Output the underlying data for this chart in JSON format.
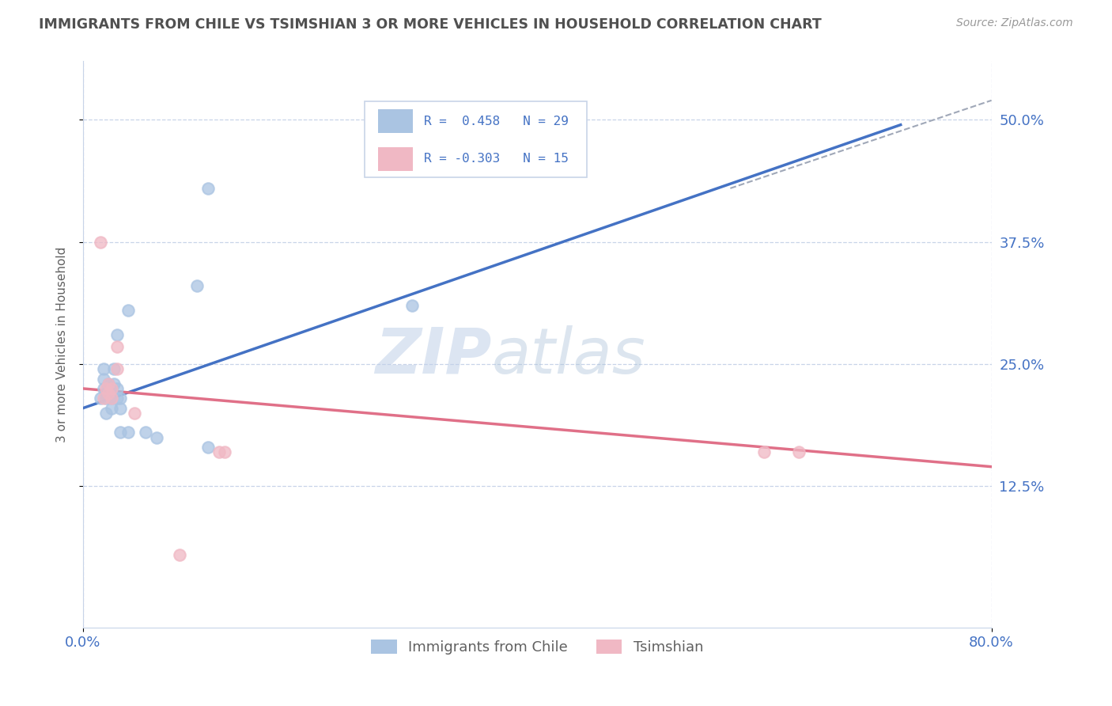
{
  "title": "IMMIGRANTS FROM CHILE VS TSIMSHIAN 3 OR MORE VEHICLES IN HOUSEHOLD CORRELATION CHART",
  "source": "Source: ZipAtlas.com",
  "ylabel": "3 or more Vehicles in Household",
  "xlim": [
    0.0,
    0.8
  ],
  "ylim": [
    -0.02,
    0.56
  ],
  "xtick_labels": [
    "0.0%",
    "80.0%"
  ],
  "ytick_labels": [
    "12.5%",
    "25.0%",
    "37.5%",
    "50.0%"
  ],
  "ytick_values": [
    0.125,
    0.25,
    0.375,
    0.5
  ],
  "xtick_values": [
    0.0,
    0.8
  ],
  "legend_labels_bottom": [
    "Immigrants from Chile",
    "Tsimshian"
  ],
  "blue_color": "#aac4e2",
  "pink_color": "#f0b8c4",
  "watermark_zip": "ZIP",
  "watermark_atlas": "atlas",
  "blue_scatter": [
    [
      0.015,
      0.215
    ],
    [
      0.018,
      0.225
    ],
    [
      0.018,
      0.235
    ],
    [
      0.018,
      0.245
    ],
    [
      0.02,
      0.2
    ],
    [
      0.02,
      0.215
    ],
    [
      0.02,
      0.22
    ],
    [
      0.022,
      0.225
    ],
    [
      0.022,
      0.23
    ],
    [
      0.025,
      0.205
    ],
    [
      0.025,
      0.215
    ],
    [
      0.025,
      0.22
    ],
    [
      0.025,
      0.225
    ],
    [
      0.027,
      0.23
    ],
    [
      0.027,
      0.245
    ],
    [
      0.03,
      0.215
    ],
    [
      0.03,
      0.225
    ],
    [
      0.03,
      0.28
    ],
    [
      0.033,
      0.18
    ],
    [
      0.033,
      0.205
    ],
    [
      0.033,
      0.215
    ],
    [
      0.04,
      0.18
    ],
    [
      0.04,
      0.305
    ],
    [
      0.055,
      0.18
    ],
    [
      0.065,
      0.175
    ],
    [
      0.1,
      0.33
    ],
    [
      0.11,
      0.165
    ],
    [
      0.29,
      0.31
    ],
    [
      0.11,
      0.43
    ]
  ],
  "pink_scatter": [
    [
      0.015,
      0.375
    ],
    [
      0.018,
      0.215
    ],
    [
      0.02,
      0.225
    ],
    [
      0.022,
      0.22
    ],
    [
      0.022,
      0.23
    ],
    [
      0.025,
      0.215
    ],
    [
      0.025,
      0.225
    ],
    [
      0.03,
      0.245
    ],
    [
      0.03,
      0.268
    ],
    [
      0.045,
      0.2
    ],
    [
      0.12,
      0.16
    ],
    [
      0.125,
      0.16
    ],
    [
      0.6,
      0.16
    ],
    [
      0.63,
      0.16
    ],
    [
      0.085,
      0.055
    ]
  ],
  "blue_line_x": [
    0.0,
    0.72
  ],
  "blue_line_y": [
    0.205,
    0.495
  ],
  "pink_line_x": [
    0.0,
    0.8
  ],
  "pink_line_y": [
    0.225,
    0.145
  ],
  "dashed_line_x": [
    0.57,
    0.8
  ],
  "dashed_line_y": [
    0.43,
    0.52
  ],
  "bg_color": "#ffffff",
  "grid_color": "#c8d4e8",
  "title_color": "#505050",
  "axis_label_color": "#606060",
  "tick_label_color": "#4472c4",
  "blue_line_color": "#4472c4",
  "pink_line_color": "#e07088"
}
